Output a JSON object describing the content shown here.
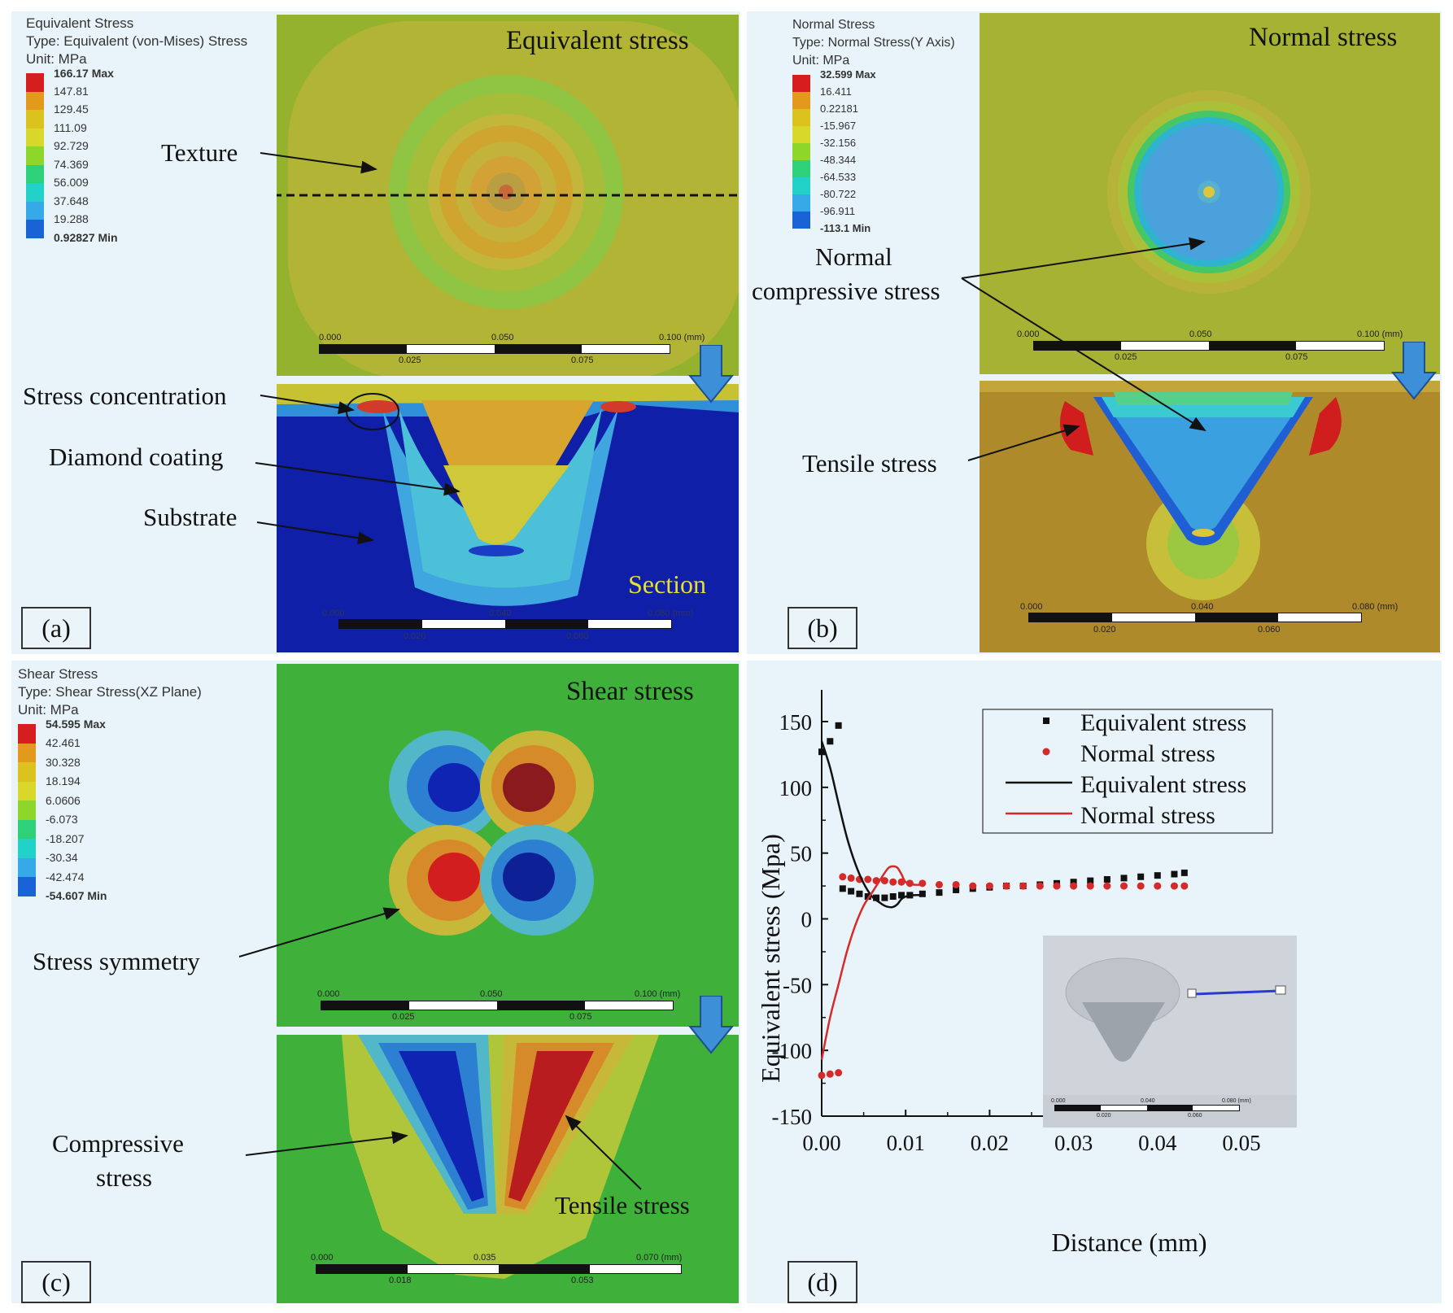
{
  "panel_a": {
    "label": "(a)",
    "title": "Equivalent stress",
    "legend": {
      "name": "Equivalent Stress",
      "type": "Type: Equivalent (von-Mises) Stress",
      "unit": "Unit: MPa",
      "values": [
        "166.17 Max",
        "147.81",
        "129.45",
        "111.09",
        "92.729",
        "74.369",
        "56.009",
        "37.648",
        "19.288",
        "0.92827 Min"
      ]
    },
    "annotations": {
      "texture": "Texture",
      "stress_concentration": "Stress concentration",
      "diamond_coating": "Diamond coating",
      "substrate": "Substrate",
      "section": "Section"
    },
    "scale_top": {
      "t0": "0.000",
      "t1": "0.050",
      "t2": "0.100 (mm)",
      "b0": "0.025",
      "b1": "0.075"
    },
    "scale_bottom": {
      "t0": "0.000",
      "t1": "0.040",
      "t2": "0.080 (mm)",
      "b0": "0.020",
      "b1": "0.060"
    }
  },
  "panel_b": {
    "label": "(b)",
    "title": "Normal stress",
    "legend": {
      "name": "Normal Stress",
      "type": "Type: Normal Stress(Y Axis)",
      "unit": "Unit: MPa",
      "values": [
        "32.599 Max",
        "16.411",
        "0.22181",
        "-15.967",
        "-32.156",
        "-48.344",
        "-64.533",
        "-80.722",
        "-96.911",
        "-113.1 Min"
      ]
    },
    "annotations": {
      "normal_compressive_1": "Normal",
      "normal_compressive_2": "compressive stress",
      "tensile": "Tensile stress"
    },
    "scale_top": {
      "t0": "0.000",
      "t1": "0.050",
      "t2": "0.100 (mm)",
      "b0": "0.025",
      "b1": "0.075"
    },
    "scale_bottom": {
      "t0": "0.000",
      "t1": "0.040",
      "t2": "0.080 (mm)",
      "b0": "0.020",
      "b1": "0.060"
    }
  },
  "panel_c": {
    "label": "(c)",
    "title": "Shear stress",
    "legend": {
      "name": "Shear Stress",
      "type": "Type: Shear Stress(XZ Plane)",
      "unit": "Unit: MPa",
      "values": [
        "54.595 Max",
        "42.461",
        "30.328",
        "18.194",
        "6.0606",
        "-6.073",
        "-18.207",
        "-30.34",
        "-42.474",
        "-54.607 Min"
      ]
    },
    "annotations": {
      "stress_symmetry": "Stress symmetry",
      "compressive_1": "Compressive",
      "compressive_2": "stress",
      "tensile": "Tensile stress"
    },
    "scale_top": {
      "t0": "0.000",
      "t1": "0.050",
      "t2": "0.100 (mm)",
      "b0": "0.025",
      "b1": "0.075"
    },
    "scale_bottom": {
      "t0": "0.000",
      "t1": "0.035",
      "t2": "0.070 (mm)",
      "b0": "0.018",
      "b1": "0.053"
    }
  },
  "panel_d": {
    "label": "(d)",
    "inset_scale": {
      "t0": "0.000",
      "t1": "0.040",
      "t2": "0.080 (mm)",
      "b0": "0.020",
      "b1": "0.060"
    }
  },
  "colors": {
    "panel_bg": "#e9f4fa",
    "legend": [
      "#d71e1e",
      "#e39a1c",
      "#dcc21c",
      "#d8d82a",
      "#8fd62b",
      "#2ed17a",
      "#22d1c8",
      "#36a9e8",
      "#1a63d6",
      "#0b16b4"
    ]
  },
  "chart_data": {
    "type": "scatter",
    "xlabel": "Distance (mm)",
    "ylabel": "Equivalent stress (Mpa)",
    "xlim": [
      0,
      0.05
    ],
    "ylim": [
      -150,
      160
    ],
    "xticks": [
      "0.00",
      "0.01",
      "0.02",
      "0.03",
      "0.04",
      "0.05"
    ],
    "yticks": [
      "-150",
      "-100",
      "-50",
      "0",
      "50",
      "100",
      "150"
    ],
    "legend": [
      "Equivalent stress",
      "Normal stress",
      "Equivalent stress",
      "Normal stress"
    ],
    "series": [
      {
        "name": "Equivalent stress",
        "style": "markers-square",
        "color": "#111111",
        "x": [
          0.0,
          0.001,
          0.002,
          0.0025,
          0.0035,
          0.0045,
          0.0055,
          0.0065,
          0.0075,
          0.0085,
          0.0095,
          0.0105,
          0.012,
          0.014,
          0.016,
          0.018,
          0.02,
          0.022,
          0.024,
          0.026,
          0.028,
          0.03,
          0.032,
          0.034,
          0.036,
          0.038,
          0.04,
          0.042,
          0.0432
        ],
        "y": [
          127,
          135,
          147,
          23,
          21,
          19,
          17,
          16,
          16,
          17,
          18,
          18,
          19,
          20,
          22,
          23,
          24,
          25,
          25,
          26,
          27,
          28,
          29,
          30,
          31,
          32,
          33,
          34,
          35
        ]
      },
      {
        "name": "Normal stress",
        "style": "markers-circle",
        "color": "#d42a2a",
        "x": [
          0.0,
          0.001,
          0.002,
          0.0025,
          0.0035,
          0.0045,
          0.0055,
          0.0065,
          0.0075,
          0.0085,
          0.0095,
          0.0105,
          0.012,
          0.014,
          0.016,
          0.018,
          0.02,
          0.022,
          0.024,
          0.026,
          0.028,
          0.03,
          0.032,
          0.034,
          0.036,
          0.038,
          0.04,
          0.042,
          0.0432
        ],
        "y": [
          -119,
          -118,
          -117,
          32,
          31,
          30,
          30,
          29,
          29,
          28,
          28,
          27,
          27,
          26,
          26,
          25,
          25,
          25,
          25,
          25,
          25,
          25,
          25,
          25,
          25,
          25,
          25,
          25,
          25
        ]
      },
      {
        "name": "Equivalent stress",
        "style": "line",
        "color": "#111111",
        "x": [
          0.0,
          0.001,
          0.002,
          0.003,
          0.004,
          0.005,
          0.006,
          0.007,
          0.0075,
          0.008,
          0.0085,
          0.009,
          0.0095,
          0.01,
          0.011,
          0.012
        ],
        "y": [
          135,
          115,
          88,
          62,
          42,
          27,
          17,
          12,
          10,
          9,
          9,
          11,
          15,
          17,
          18,
          18
        ]
      },
      {
        "name": "Normal stress",
        "style": "line",
        "color": "#d42a2a",
        "x": [
          0.0,
          0.001,
          0.002,
          0.003,
          0.004,
          0.005,
          0.006,
          0.007,
          0.0075,
          0.008,
          0.0085,
          0.009,
          0.0095,
          0.01,
          0.011,
          0.012
        ],
        "y": [
          -107,
          -75,
          -50,
          -25,
          -5,
          10,
          20,
          30,
          35,
          39,
          40,
          39,
          34,
          28,
          26,
          26
        ]
      }
    ]
  }
}
